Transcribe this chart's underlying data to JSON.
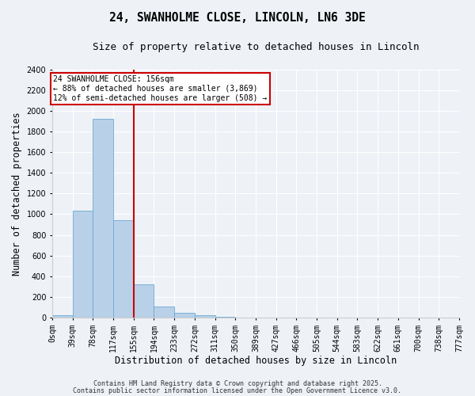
{
  "title": "24, SWANHOLME CLOSE, LINCOLN, LN6 3DE",
  "subtitle": "Size of property relative to detached houses in Lincoln",
  "xlabel": "Distribution of detached houses by size in Lincoln",
  "ylabel": "Number of detached properties",
  "bar_values": [
    20,
    1030,
    1920,
    940,
    320,
    105,
    50,
    20,
    5,
    0,
    0,
    0,
    0,
    0,
    0,
    0,
    0,
    0,
    0,
    0
  ],
  "bin_labels": [
    "0sqm",
    "39sqm",
    "78sqm",
    "117sqm",
    "155sqm",
    "194sqm",
    "233sqm",
    "272sqm",
    "311sqm",
    "350sqm",
    "389sqm",
    "427sqm",
    "466sqm",
    "505sqm",
    "544sqm",
    "583sqm",
    "622sqm",
    "661sqm",
    "700sqm",
    "738sqm",
    "777sqm"
  ],
  "bar_color": "#b8d0e8",
  "bar_edge_color": "#6aaad4",
  "vline_color": "#cc0000",
  "annotation_line1": "24 SWANHOLME CLOSE: 156sqm",
  "annotation_line2": "← 88% of detached houses are smaller (3,869)",
  "annotation_line3": "12% of semi-detached houses are larger (508) →",
  "annotation_box_color": "#cc0000",
  "ylim": [
    0,
    2400
  ],
  "yticks": [
    0,
    200,
    400,
    600,
    800,
    1000,
    1200,
    1400,
    1600,
    1800,
    2000,
    2200,
    2400
  ],
  "bg_color": "#eef2f7",
  "grid_color": "#ffffff",
  "footer_line1": "Contains HM Land Registry data © Crown copyright and database right 2025.",
  "footer_line2": "Contains public sector information licensed under the Open Government Licence v3.0.",
  "title_fontsize": 10.5,
  "subtitle_fontsize": 9,
  "axis_label_fontsize": 8.5,
  "tick_fontsize": 7,
  "annotation_fontsize": 7,
  "footer_fontsize": 6
}
